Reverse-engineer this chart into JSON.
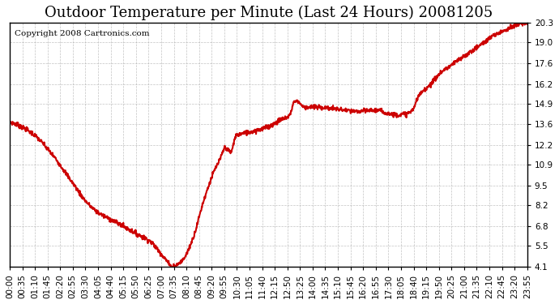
{
  "title": "Outdoor Temperature per Minute (Last 24 Hours) 20081205",
  "copyright_text": "Copyright 2008 Cartronics.com",
  "line_color": "#cc0000",
  "background_color": "#ffffff",
  "grid_color": "#aaaaaa",
  "y_ticks": [
    4.1,
    5.5,
    6.8,
    8.2,
    9.5,
    10.9,
    12.2,
    13.6,
    14.9,
    16.2,
    17.6,
    19.0,
    20.3
  ],
  "ylim": [
    4.1,
    20.3
  ],
  "x_tick_labels": [
    "00:00",
    "00:35",
    "01:10",
    "01:45",
    "02:20",
    "02:55",
    "03:30",
    "04:05",
    "04:40",
    "05:15",
    "05:50",
    "06:25",
    "07:00",
    "07:35",
    "08:10",
    "08:45",
    "09:20",
    "09:55",
    "10:30",
    "11:05",
    "11:40",
    "12:15",
    "12:50",
    "13:25",
    "14:00",
    "14:35",
    "15:10",
    "15:45",
    "16:20",
    "16:55",
    "17:30",
    "18:05",
    "18:40",
    "19:15",
    "19:50",
    "20:25",
    "21:00",
    "21:35",
    "22:10",
    "22:45",
    "23:20",
    "23:55"
  ],
  "line_width": 1.5,
  "title_fontsize": 13,
  "tick_fontsize": 7.5,
  "copyright_fontsize": 7.5
}
